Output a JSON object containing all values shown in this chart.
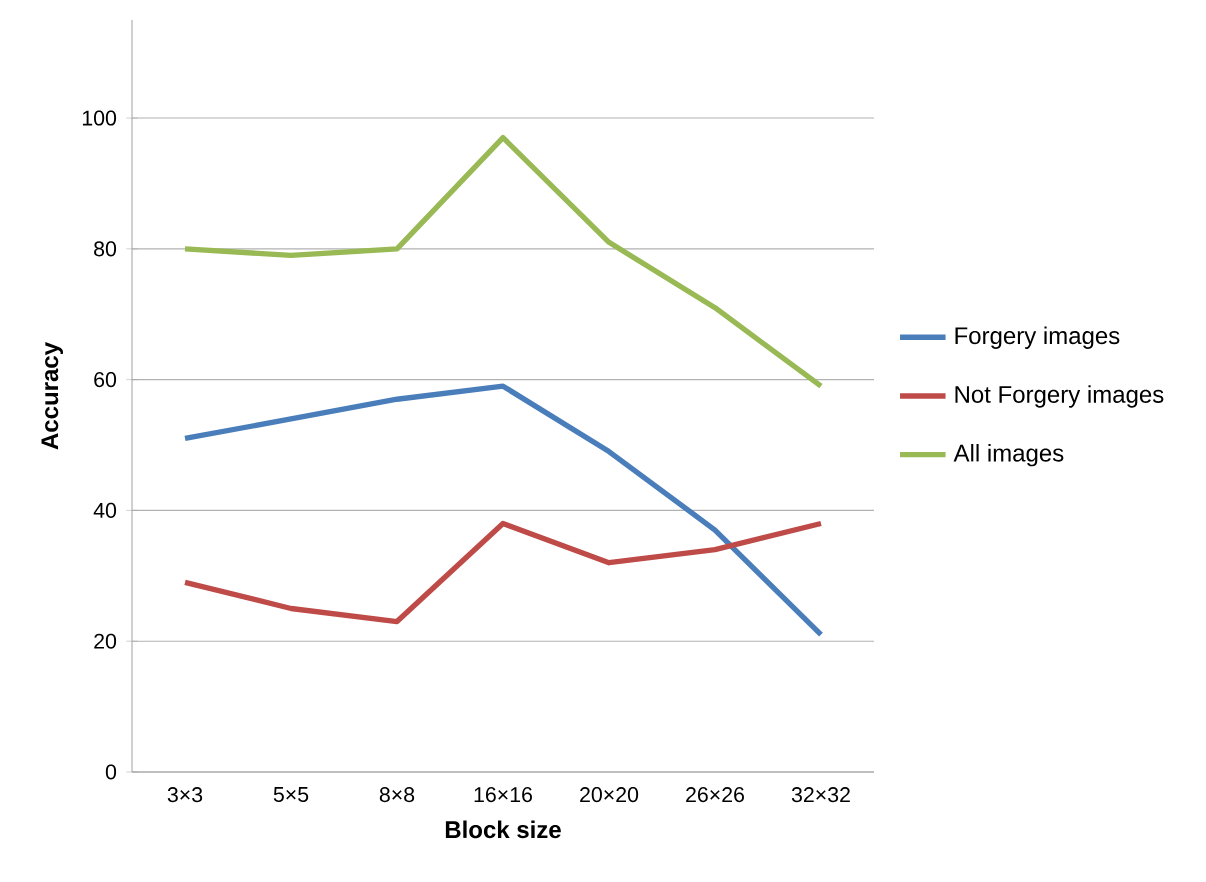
{
  "chart_data": {
    "type": "line",
    "xlabel": "Block size",
    "ylabel": "Accuracy",
    "categories": [
      "3×3",
      "5×5",
      "8×8",
      "16×16",
      "20×20",
      "26×26",
      "32×32"
    ],
    "series": [
      {
        "name": "Forgery images",
        "color": "#4a7ebb",
        "values": [
          51,
          54,
          57,
          59,
          49,
          37,
          21
        ]
      },
      {
        "name": "Not Forgery images",
        "color": "#be4b48",
        "values": [
          29,
          25,
          23,
          38,
          32,
          34,
          38
        ]
      },
      {
        "name": "All images",
        "color": "#98b954",
        "values": [
          80,
          79,
          80,
          97,
          81,
          71,
          59
        ]
      }
    ],
    "ylim": [
      0,
      115
    ],
    "yticks": [
      0,
      20,
      40,
      60,
      80,
      100
    ],
    "grid": "y",
    "legend": "right",
    "marker": "none",
    "line_style": "solid"
  }
}
